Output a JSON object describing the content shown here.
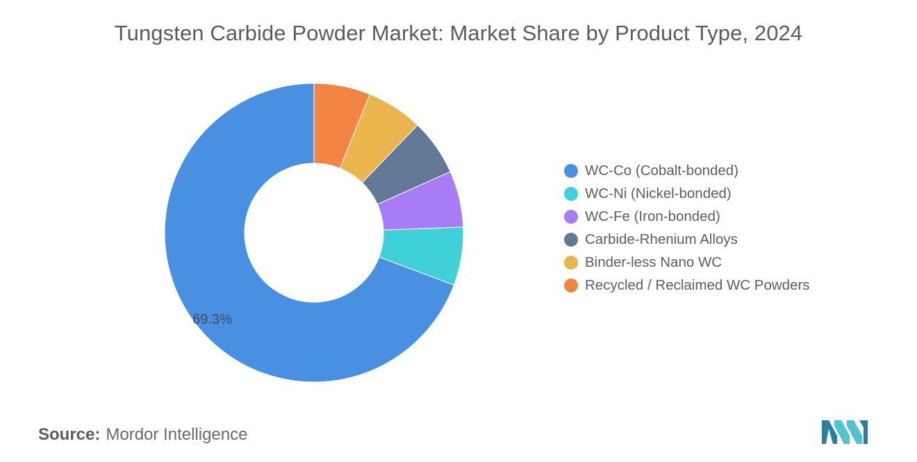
{
  "chart_data": {
    "type": "pie",
    "title": "Tungsten Carbide Powder Market: Market Share by Product Type, 2024",
    "categories": [
      "WC-Co (Cobalt-bonded)",
      "WC-Ni (Nickel-bonded)",
      "WC-Fe (Iron-bonded)",
      "Carbide-Rhenium Alloys",
      "Binder-less Nano WC",
      "Recycled / Reclaimed WC Powders"
    ],
    "values": [
      69.3,
      6.3,
      6.1,
      6.1,
      6.1,
      6.1
    ],
    "colors": [
      "#4a90e2",
      "#40d0d8",
      "#a77cf6",
      "#637897",
      "#eab54d",
      "#f28444"
    ],
    "data_labels": [
      "69.3%",
      "",
      "",
      "",
      "",
      ""
    ],
    "donut": true,
    "legend_position": "right"
  },
  "source": {
    "label": "Source:",
    "value": "Mordor Intelligence"
  },
  "logo": {
    "name": "mordor-intelligence-logo",
    "colors": [
      "#2a7f9e",
      "#4fc4cf"
    ]
  }
}
